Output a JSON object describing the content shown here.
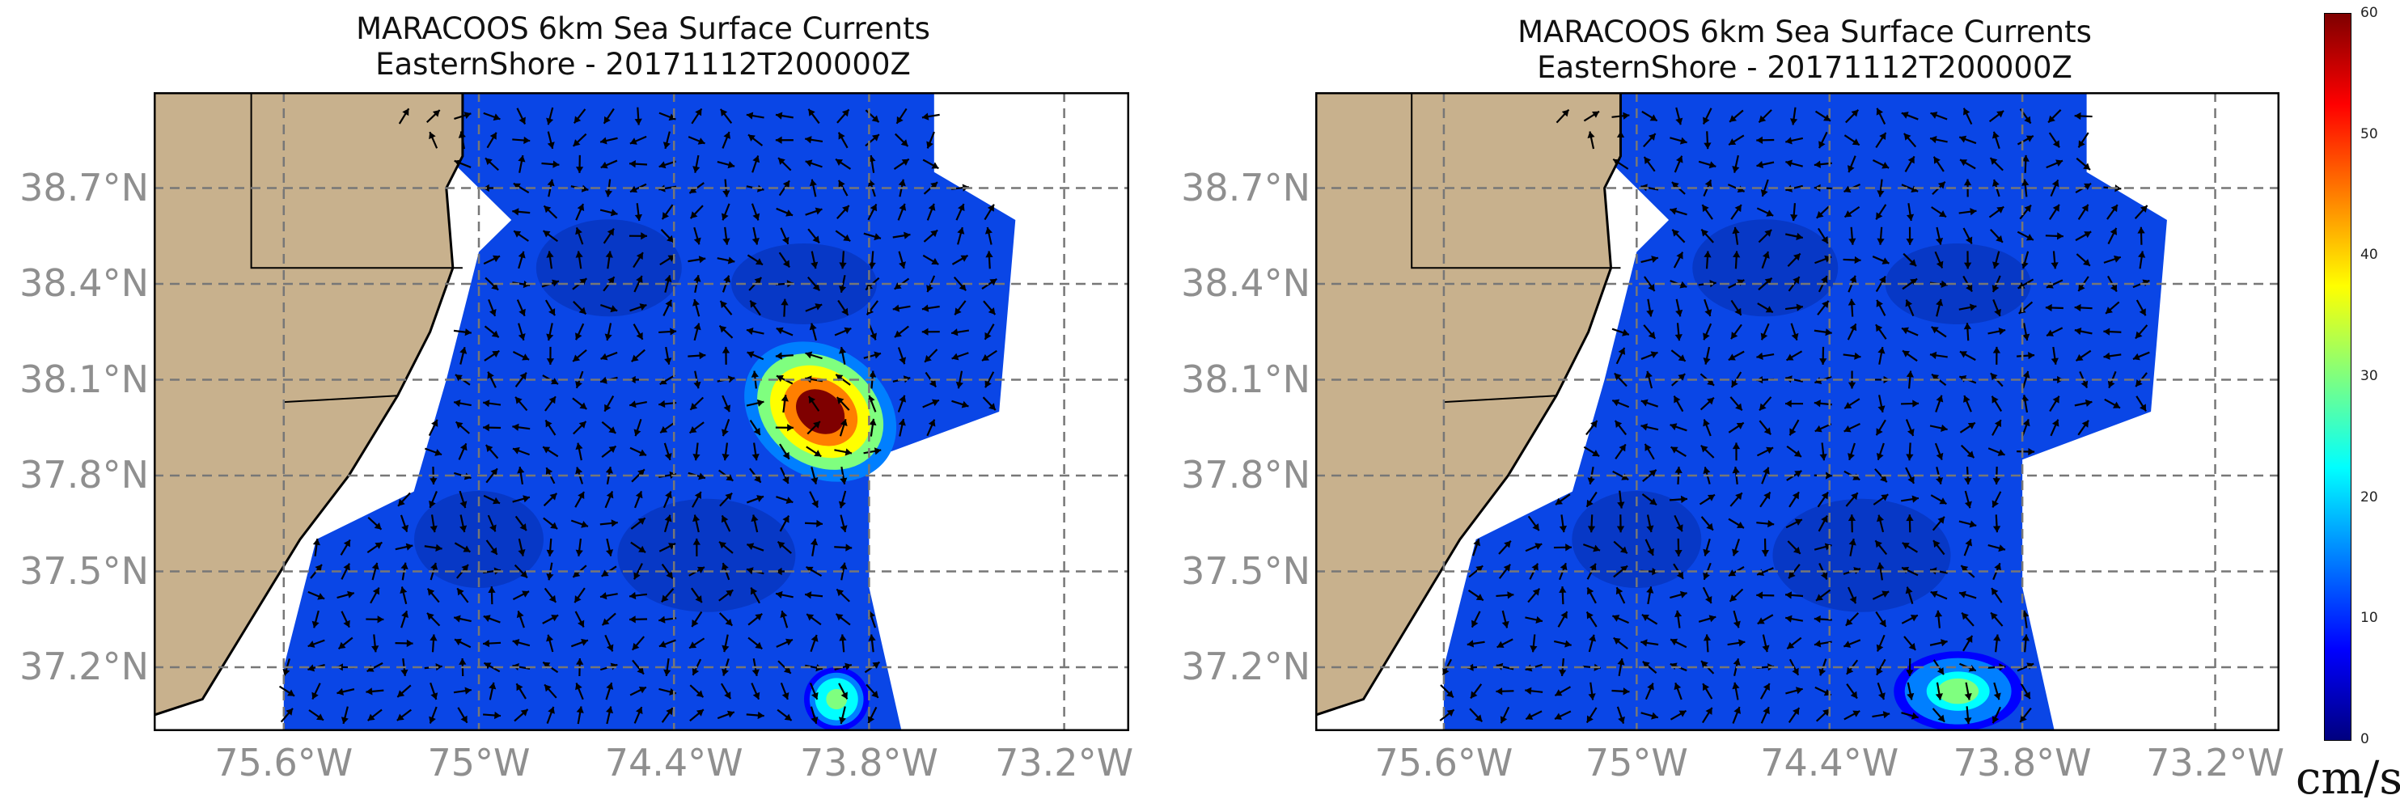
{
  "chart_data": [
    {
      "type": "heatmap",
      "title": "MARACOOS 6km Sea Surface Currents",
      "subtitle": "EasternShore - 20171112T200000Z",
      "xlabel": "",
      "ylabel": "",
      "x_ticks": [
        "75.6°W",
        "75°W",
        "74.4°W",
        "73.8°W",
        "73.2°W"
      ],
      "y_ticks": [
        "38.7°N",
        "38.4°N",
        "38.1°N",
        "37.8°N",
        "37.5°N",
        "37.2°N"
      ],
      "xlim": [
        -76.0,
        -73.0
      ],
      "ylim": [
        37.0,
        39.0
      ],
      "grid": true,
      "field": "surface current vectors colored by speed (cm/s)",
      "features": [
        {
          "name": "high-speed band",
          "max_speed": 60,
          "lat_range": [
            37.8,
            38.2
          ],
          "lon_range": [
            -74.2,
            -73.7
          ]
        },
        {
          "name": "southern high-speed patch",
          "max_speed": 35,
          "lat_range": [
            37.0,
            37.2
          ],
          "lon_range": [
            -74.0,
            -73.8
          ]
        }
      ]
    },
    {
      "type": "heatmap",
      "title": "MARACOOS 6km Sea Surface Currents",
      "subtitle": "EasternShore - 20171112T200000Z",
      "xlabel": "",
      "ylabel": "",
      "x_ticks": [
        "75.6°W",
        "75°W",
        "74.4°W",
        "73.8°W",
        "73.2°W"
      ],
      "y_ticks": [
        "38.7°N",
        "38.4°N",
        "38.1°N",
        "37.8°N",
        "37.5°N",
        "37.2°N"
      ],
      "xlim": [
        -76.0,
        -73.0
      ],
      "ylim": [
        37.0,
        39.0
      ],
      "grid": true,
      "field": "surface current vectors colored by speed (cm/s)",
      "features": [
        {
          "name": "southern high-speed patch",
          "max_speed": 30,
          "lat_range": [
            37.0,
            37.25
          ],
          "lon_range": [
            -74.2,
            -73.8
          ]
        }
      ]
    }
  ],
  "colorbar": {
    "ticks": [
      "0",
      "10",
      "20",
      "30",
      "40",
      "50",
      "60"
    ],
    "units": "cm/s",
    "colors": [
      "#00007f",
      "#0000ff",
      "#007fff",
      "#00ffff",
      "#7fff7f",
      "#ffff00",
      "#ff7f00",
      "#ff0000",
      "#7f0000"
    ]
  },
  "map_colors": {
    "land": "#c8b18d",
    "ocean_no_data": "#ffffff",
    "grid": "#777777",
    "arrows": "#000000"
  }
}
